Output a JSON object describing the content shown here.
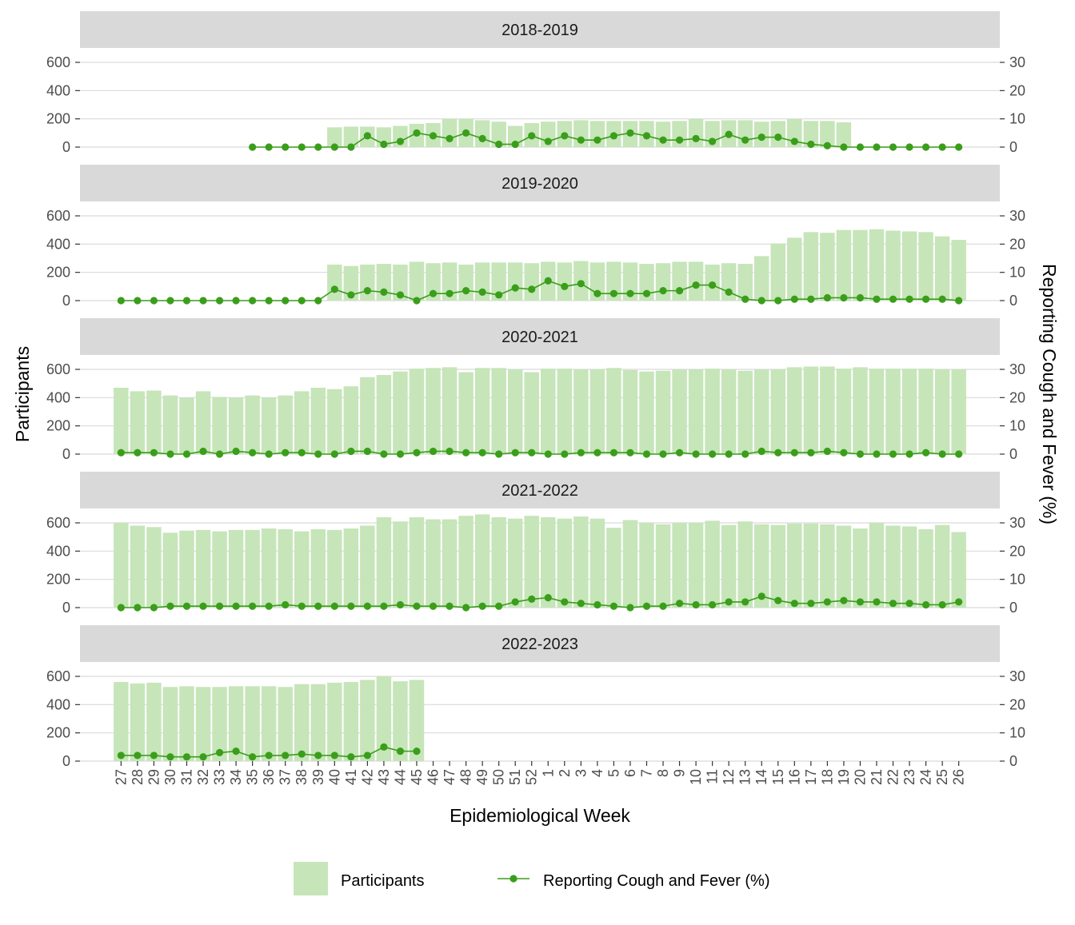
{
  "chart_data": {
    "type": "bar",
    "layout": "faceted-vertical",
    "xlabel": "Epidemiological Week",
    "ylabel_left": "Participants",
    "ylabel_right": "Reporting Cough and Fever (%)",
    "x_weeks": [
      "27",
      "28",
      "29",
      "30",
      "31",
      "32",
      "33",
      "34",
      "35",
      "36",
      "37",
      "38",
      "39",
      "40",
      "41",
      "42",
      "43",
      "44",
      "45",
      "46",
      "47",
      "48",
      "49",
      "50",
      "51",
      "52",
      "1",
      "2",
      "3",
      "4",
      "5",
      "6",
      "7",
      "8",
      "9",
      "10",
      "11",
      "12",
      "13",
      "14",
      "15",
      "16",
      "17",
      "18",
      "19",
      "20",
      "21",
      "22",
      "23",
      "24",
      "25",
      "26"
    ],
    "left_axis": {
      "ylim": [
        0,
        600
      ],
      "ticks": [
        0,
        200,
        400,
        600
      ]
    },
    "right_axis": {
      "ylim": [
        0,
        30
      ],
      "ticks": [
        0,
        10,
        20,
        30
      ]
    },
    "grid": true,
    "legend_position": "bottom",
    "legend": [
      {
        "label": "Participants",
        "type": "bar",
        "color": "#c6e5b9"
      },
      {
        "label": "Reporting Cough and Fever (%)",
        "type": "line-point",
        "color": "#3a9e1a"
      }
    ],
    "colors": {
      "bar": "#c6e5b9",
      "line": "#3a9e1a",
      "strip_bg": "#d9d9d9",
      "grid": "#d9d9d9"
    },
    "panels": [
      {
        "season": "2018-2019",
        "participants": [
          null,
          null,
          null,
          null,
          null,
          null,
          null,
          null,
          null,
          null,
          null,
          null,
          null,
          140,
          145,
          145,
          140,
          150,
          165,
          170,
          200,
          200,
          190,
          180,
          150,
          170,
          180,
          185,
          190,
          185,
          185,
          185,
          185,
          180,
          185,
          200,
          185,
          190,
          190,
          180,
          185,
          200,
          185,
          185,
          175,
          null,
          null,
          null,
          null,
          null,
          null,
          null
        ],
        "cough_fever_pct": [
          null,
          null,
          null,
          null,
          null,
          null,
          null,
          null,
          0,
          0,
          0,
          0,
          0,
          0,
          0,
          4,
          1,
          2,
          5,
          4,
          3,
          5,
          3,
          1,
          1,
          4,
          2,
          4,
          2.5,
          2.5,
          4,
          5,
          4,
          2.5,
          2.5,
          3,
          2,
          4.5,
          2.5,
          3.5,
          3.5,
          2,
          1,
          0.5,
          0,
          0,
          0,
          0,
          0,
          0,
          0,
          0
        ]
      },
      {
        "season": "2019-2020",
        "participants": [
          null,
          null,
          null,
          null,
          null,
          null,
          null,
          null,
          null,
          null,
          null,
          null,
          null,
          255,
          245,
          255,
          260,
          255,
          275,
          265,
          270,
          255,
          270,
          270,
          270,
          265,
          275,
          270,
          280,
          270,
          275,
          270,
          260,
          265,
          275,
          275,
          255,
          265,
          260,
          315,
          405,
          445,
          485,
          480,
          500,
          500,
          505,
          495,
          490,
          485,
          455,
          430
        ],
        "cough_fever_pct": [
          0,
          0,
          0,
          0,
          0,
          0,
          0,
          0,
          0,
          0,
          0,
          0,
          0,
          4,
          2,
          3.5,
          3,
          2,
          0,
          2.5,
          2.5,
          3.5,
          3,
          2,
          4.5,
          4,
          7,
          5,
          6,
          2.5,
          2.5,
          2.5,
          2.5,
          3.5,
          3.5,
          5.5,
          5.5,
          3,
          0.5,
          0,
          0,
          0.5,
          0.5,
          1,
          1,
          1,
          0.5,
          0.5,
          0.5,
          0.5,
          0.5,
          0
        ]
      },
      {
        "season": "2020-2021",
        "participants": [
          470,
          445,
          450,
          415,
          400,
          445,
          405,
          400,
          415,
          400,
          415,
          445,
          470,
          460,
          480,
          545,
          560,
          585,
          605,
          610,
          615,
          580,
          610,
          610,
          600,
          580,
          605,
          605,
          600,
          600,
          610,
          595,
          585,
          590,
          600,
          600,
          605,
          600,
          590,
          600,
          600,
          615,
          620,
          620,
          605,
          615,
          605,
          605,
          605,
          605,
          600,
          600
        ],
        "cough_fever_pct": [
          0.5,
          0.5,
          0.5,
          0,
          0,
          1,
          0,
          1,
          0.5,
          0,
          0.5,
          0.5,
          0,
          0,
          1,
          1,
          0,
          0,
          0.5,
          1,
          1,
          0.5,
          0.5,
          0,
          0.5,
          0.5,
          0,
          0,
          0.5,
          0.5,
          0.5,
          0.5,
          0,
          0,
          0.5,
          0,
          0,
          0,
          0,
          1,
          0.5,
          0.5,
          0.5,
          1,
          0.5,
          0,
          0,
          0,
          0,
          0.5,
          0,
          0
        ]
      },
      {
        "season": "2021-2022",
        "participants": [
          600,
          580,
          570,
          530,
          545,
          550,
          540,
          550,
          550,
          560,
          555,
          540,
          555,
          550,
          560,
          580,
          640,
          610,
          640,
          625,
          625,
          650,
          660,
          640,
          630,
          650,
          640,
          630,
          645,
          630,
          565,
          620,
          600,
          590,
          600,
          600,
          615,
          585,
          610,
          590,
          585,
          595,
          595,
          590,
          580,
          560,
          600,
          580,
          575,
          555,
          585,
          535
        ],
        "cough_fever_pct": [
          0,
          0,
          0,
          0.5,
          0.5,
          0.5,
          0.5,
          0.5,
          0.5,
          0.5,
          1,
          0.5,
          0.5,
          0.5,
          0.5,
          0.5,
          0.5,
          1,
          0.5,
          0.5,
          0.5,
          0,
          0.5,
          0.5,
          2,
          3,
          3.5,
          2,
          1.5,
          1,
          0.5,
          0,
          0.5,
          0.5,
          1.5,
          1,
          1,
          2,
          2,
          4,
          2.5,
          1.5,
          1.5,
          2,
          2.5,
          2,
          2,
          1.5,
          1.5,
          1,
          1,
          2
        ]
      },
      {
        "season": "2022-2023",
        "participants": [
          560,
          550,
          555,
          525,
          530,
          525,
          525,
          530,
          530,
          530,
          525,
          545,
          545,
          555,
          560,
          575,
          600,
          565,
          575,
          null,
          null,
          null,
          null,
          null,
          null,
          null,
          null,
          null,
          null,
          null,
          null,
          null,
          null,
          null,
          null,
          null,
          null,
          null,
          null,
          null,
          null,
          null,
          null,
          null,
          null,
          null,
          null,
          null,
          null,
          null,
          null,
          null
        ],
        "cough_fever_pct": [
          2,
          2,
          2,
          1.5,
          1.5,
          1.5,
          3,
          3.5,
          1.5,
          2,
          2,
          2.5,
          2,
          2,
          1.5,
          2,
          5,
          3.5,
          3.5,
          null,
          null,
          null,
          null,
          null,
          null,
          null,
          null,
          null,
          null,
          null,
          null,
          null,
          null,
          null,
          null,
          null,
          null,
          null,
          null,
          null,
          null,
          null,
          null,
          null,
          null,
          null,
          null,
          null,
          null,
          null,
          null,
          null
        ]
      }
    ]
  }
}
